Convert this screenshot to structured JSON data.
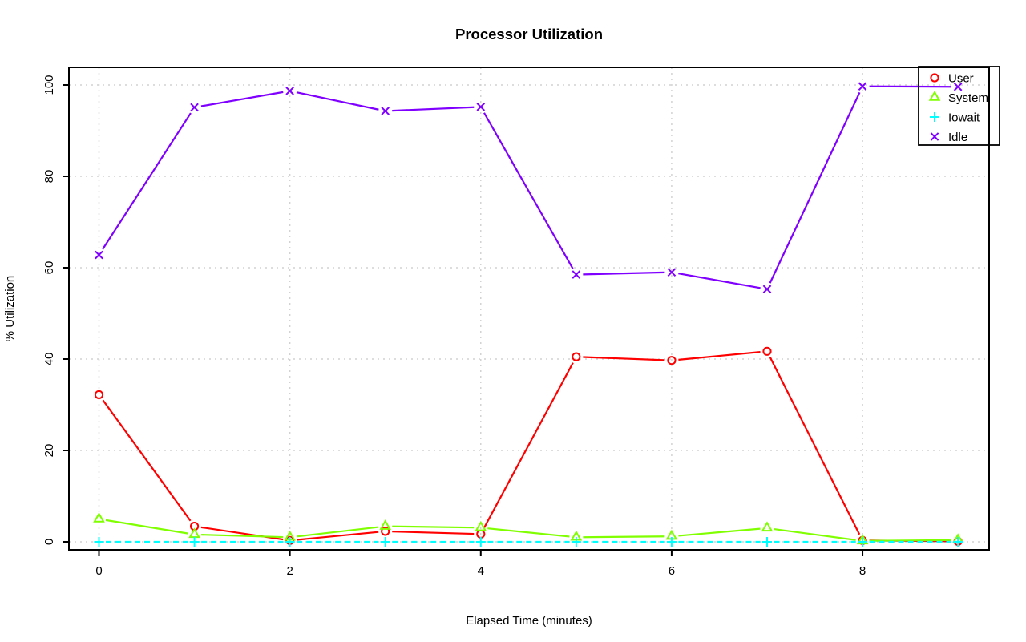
{
  "chart_data": {
    "type": "line",
    "title": "Processor Utilization",
    "xlabel": "Elapsed Time (minutes)",
    "ylabel": "% Utilization",
    "x": [
      0,
      1,
      2,
      3,
      4,
      5,
      6,
      7,
      8,
      9
    ],
    "xticks": [
      0,
      2,
      4,
      6,
      8
    ],
    "yticks": [
      0,
      20,
      40,
      60,
      80,
      100
    ],
    "xlim": [
      -0.3,
      9.3
    ],
    "ylim": [
      -2,
      104
    ],
    "grid": "dotted-lightgray-at-ticks",
    "grid_color": "#d2d2d2",
    "point_style": "open-markers-with-gapped-line-segments",
    "legend_position": "top-right",
    "series": [
      {
        "name": "User",
        "color": "#ff0000",
        "marker": "circle",
        "line": "solid",
        "values": [
          32.2,
          3.4,
          0.3,
          2.3,
          1.7,
          40.5,
          39.7,
          41.7,
          0.3,
          0.1
        ]
      },
      {
        "name": "System",
        "color": "#80ff00",
        "marker": "triangle",
        "line": "solid",
        "values": [
          5.0,
          1.6,
          1.0,
          3.4,
          3.1,
          1.0,
          1.2,
          3.0,
          0.2,
          0.4
        ]
      },
      {
        "name": "Iowait",
        "color": "#00ffff",
        "marker": "plus",
        "line": "dashed",
        "values": [
          0,
          0,
          0,
          0,
          0,
          0,
          0,
          0,
          0,
          0
        ]
      },
      {
        "name": "Idle",
        "color": "#8000ff",
        "marker": "x",
        "line": "solid",
        "values": [
          62.8,
          95.1,
          98.7,
          94.3,
          95.2,
          58.5,
          59.0,
          55.3,
          99.7,
          99.6
        ]
      }
    ]
  }
}
